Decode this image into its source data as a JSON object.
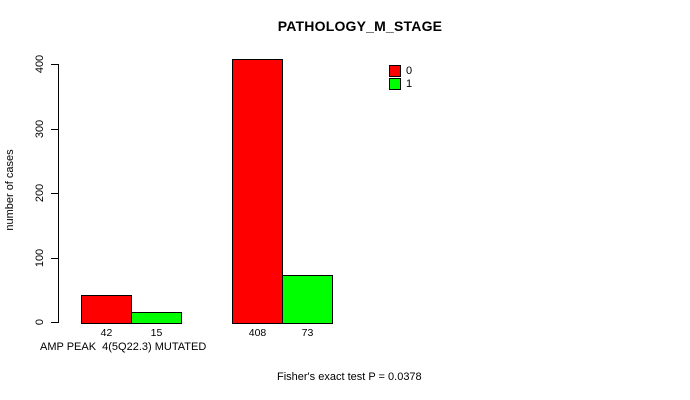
{
  "chart_data": {
    "type": "bar",
    "title": "PATHOLOGY_M_STAGE",
    "ylabel": "number of cases",
    "xlabel": "AMP PEAK  4(5Q22.3) MUTATED",
    "footnote": "Fisher's exact test P = 0.0378",
    "ylim": [
      0,
      400
    ],
    "yticks": [
      0,
      100,
      200,
      300,
      400
    ],
    "grid": false,
    "legend_position": "top-right-inside",
    "legend": [
      {
        "label": "0",
        "color": "#ff0000"
      },
      {
        "label": "1",
        "color": "#00ff00"
      }
    ],
    "series": [
      {
        "name": "0",
        "color": "#ff0000",
        "values": [
          42,
          408
        ]
      },
      {
        "name": "1",
        "color": "#00ff00",
        "values": [
          15,
          73
        ]
      }
    ],
    "colors": {
      "axis": "#000000",
      "background": "#ffffff",
      "text": "#000000"
    }
  }
}
